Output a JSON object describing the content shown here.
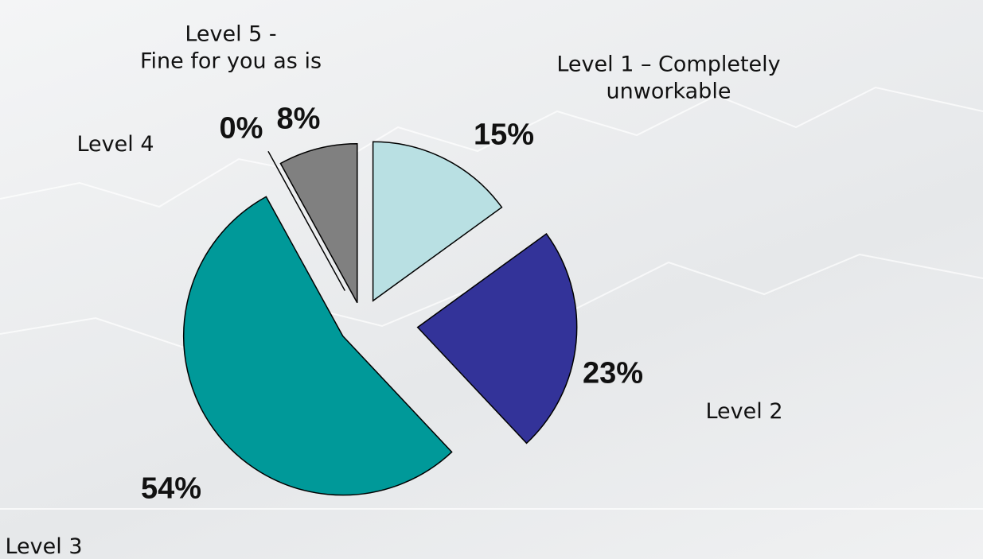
{
  "chart_data": {
    "type": "pie",
    "categories": [
      "Level 1 – Completely unworkable",
      "Level 2",
      "Level 3",
      "Level 4",
      "Level 5 -\nFine for you as is"
    ],
    "values": [
      15,
      23,
      54,
      0,
      8
    ],
    "value_labels": [
      "15%",
      "23%",
      "54%",
      "0%",
      "8%"
    ],
    "colors": [
      "#b9e0e3",
      "#333399",
      "#009999",
      "#ffffff",
      "#808080"
    ]
  }
}
